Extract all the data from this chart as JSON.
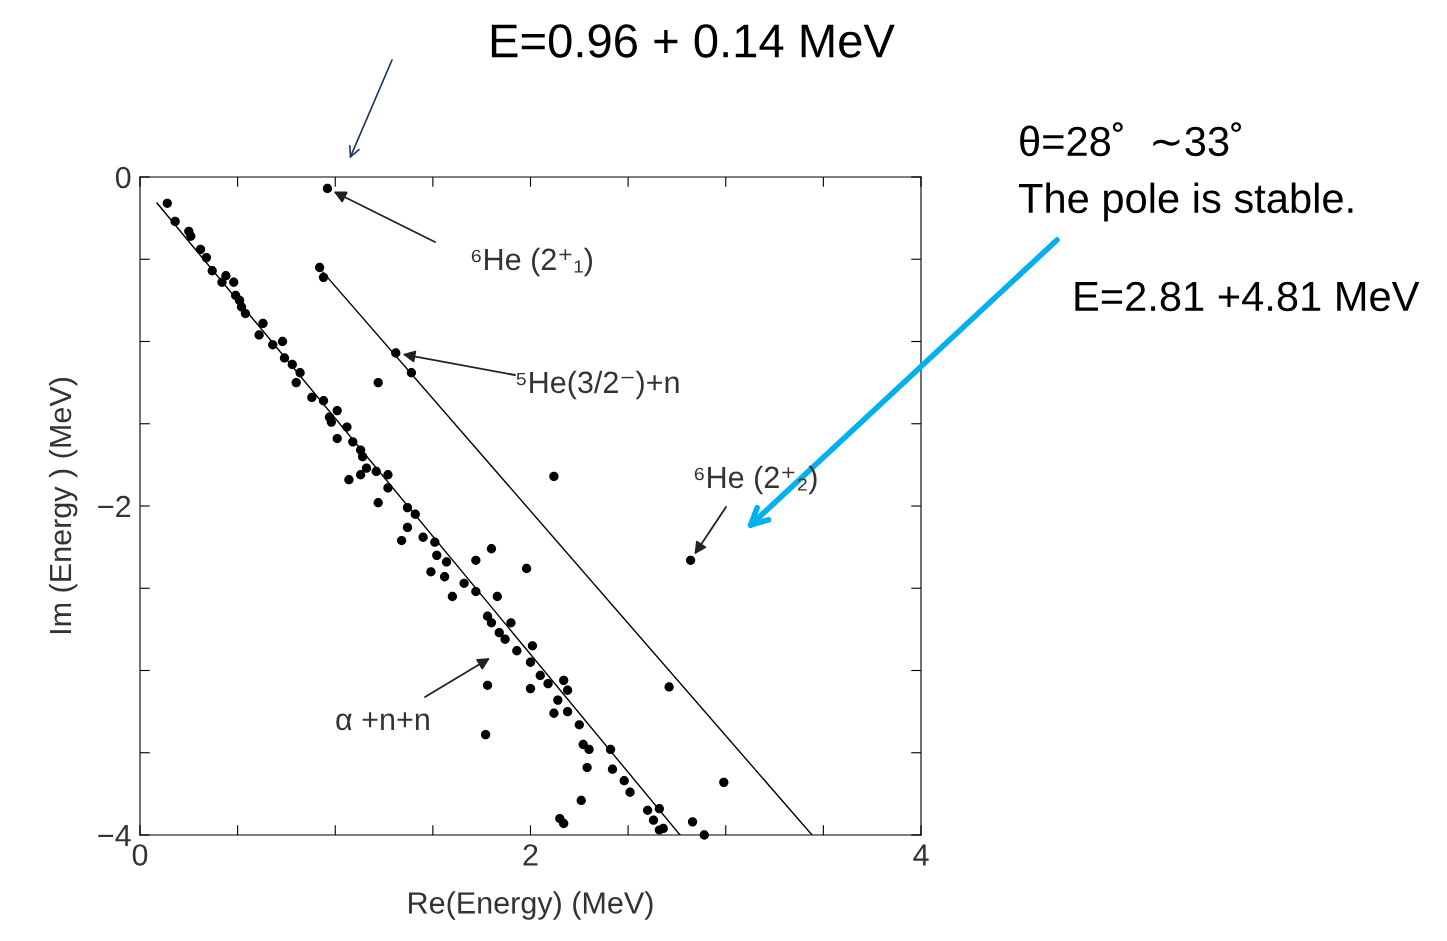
{
  "chart_data": {
    "type": "scatter",
    "xlabel": "Re(Energy) (MeV)",
    "ylabel": "Im (Energy ) (MeV)",
    "xlim": [
      0,
      4
    ],
    "ylim": [
      -4,
      0
    ],
    "grid": false,
    "marker": "circle",
    "legend": false,
    "xticks": [
      0,
      {
        "value": 0.5,
        "label": null
      },
      {
        "value": 1,
        "label": null
      },
      {
        "value": 1.5,
        "label": null
      },
      2,
      {
        "value": 2.5,
        "label": null
      },
      {
        "value": 3,
        "label": null
      },
      {
        "value": 3.5,
        "label": null
      },
      4
    ],
    "yticks": [
      0,
      {
        "value": -0.5,
        "label": null
      },
      {
        "value": -1,
        "label": null
      },
      {
        "value": -1.5,
        "label": null
      },
      {
        "value": -2,
        "label": "−2"
      },
      {
        "value": -2.5,
        "label": null
      },
      {
        "value": -3,
        "label": null
      },
      {
        "value": -3.5,
        "label": null
      },
      {
        "value": -4,
        "label": "−4"
      }
    ],
    "series": [
      {
        "color": "#000000",
        "x": [
          0.14,
          0.18,
          0.25,
          0.26,
          0.31,
          0.34,
          0.37,
          0.44,
          0.42,
          0.48,
          0.49,
          0.51,
          0.52,
          0.54,
          0.63,
          0.61,
          0.68,
          0.73,
          0.74,
          0.78,
          0.82,
          0.8,
          0.88,
          0.94,
          0.97,
          1.01,
          1.06,
          1.01,
          1.09,
          1.13,
          1.14,
          1.16,
          1.21,
          1.27,
          1.13,
          1.07,
          1.27,
          1.22,
          0.98,
          1.37,
          1.41,
          1.37,
          1.34,
          1.45,
          1.51,
          1.52,
          1.57,
          1.49,
          1.56,
          1.6,
          1.66,
          1.72,
          1.83,
          1.72,
          1.8,
          1.98,
          2.12,
          1.78,
          1.8,
          1.84,
          1.9,
          1.87,
          1.93,
          2.01,
          2.0,
          2.05,
          2.09,
          2.0,
          2.17,
          2.19,
          2.14,
          2.12,
          2.19,
          2.25,
          2.27,
          2.3,
          2.41,
          2.29,
          2.42,
          2.48,
          2.51,
          2.26,
          2.15,
          2.17,
          2.6,
          2.66,
          2.63,
          2.68,
          2.83,
          2.89,
          1.78,
          1.77,
          2.71,
          2.99,
          2.82,
          2.66,
          0.96,
          0.92,
          0.94,
          1.31,
          1.39,
          1.22
        ],
        "values": [
          -0.16,
          -0.27,
          -0.33,
          -0.36,
          -0.44,
          -0.49,
          -0.57,
          -0.6,
          -0.64,
          -0.64,
          -0.72,
          -0.75,
          -0.79,
          -0.83,
          -0.89,
          -0.96,
          -1.02,
          -1.0,
          -1.1,
          -1.14,
          -1.19,
          -1.25,
          -1.34,
          -1.36,
          -1.46,
          -1.42,
          -1.52,
          -1.59,
          -1.61,
          -1.66,
          -1.7,
          -1.77,
          -1.79,
          -1.81,
          -1.81,
          -1.84,
          -1.89,
          -1.98,
          -1.49,
          -2.01,
          -2.05,
          -2.13,
          -2.21,
          -2.19,
          -2.22,
          -2.3,
          -2.34,
          -2.4,
          -2.43,
          -2.55,
          -2.47,
          -2.52,
          -2.55,
          -2.33,
          -2.26,
          -2.38,
          -1.82,
          -2.67,
          -2.71,
          -2.77,
          -2.71,
          -2.81,
          -2.88,
          -2.85,
          -2.95,
          -3.03,
          -3.08,
          -3.11,
          -3.06,
          -3.12,
          -3.18,
          -3.26,
          -3.25,
          -3.33,
          -3.45,
          -3.48,
          -3.48,
          -3.59,
          -3.6,
          -3.67,
          -3.74,
          -3.79,
          -3.9,
          -3.93,
          -3.85,
          -3.84,
          -3.91,
          -3.96,
          -3.92,
          -4.0,
          -3.09,
          -3.39,
          -3.1,
          -3.68,
          -2.33,
          -3.97,
          -0.07,
          -0.55,
          -0.61,
          -1.07,
          -1.19,
          -1.25
        ]
      },
      {
        "type": "line",
        "marker": "none",
        "color": "#000000",
        "x": [
          0.087,
          2.766
        ],
        "values": [
          -0.158,
          -4
        ]
      },
      {
        "type": "line",
        "marker": "none",
        "color": "#000000",
        "x": [
          0.937,
          3.442
        ],
        "values": [
          -0.578,
          -4
        ]
      }
    ],
    "annotations": [
      {
        "text": "⁶He (2⁺₁)",
        "x": 0.96,
        "y": -0.07
      },
      {
        "text": "⁵He(3/2⁻)+n",
        "x": 1.31,
        "y": -1.07
      },
      {
        "text": "⁶He (2⁺₂)",
        "x": 2.82,
        "y": -2.33
      },
      "α +n+n",
      "E=0.96 + 0.14 MeV",
      "θ=28˚  ∼33˚",
      "The pole is stable.",
      "E=2.81 +4.81 MeV"
    ]
  }
}
